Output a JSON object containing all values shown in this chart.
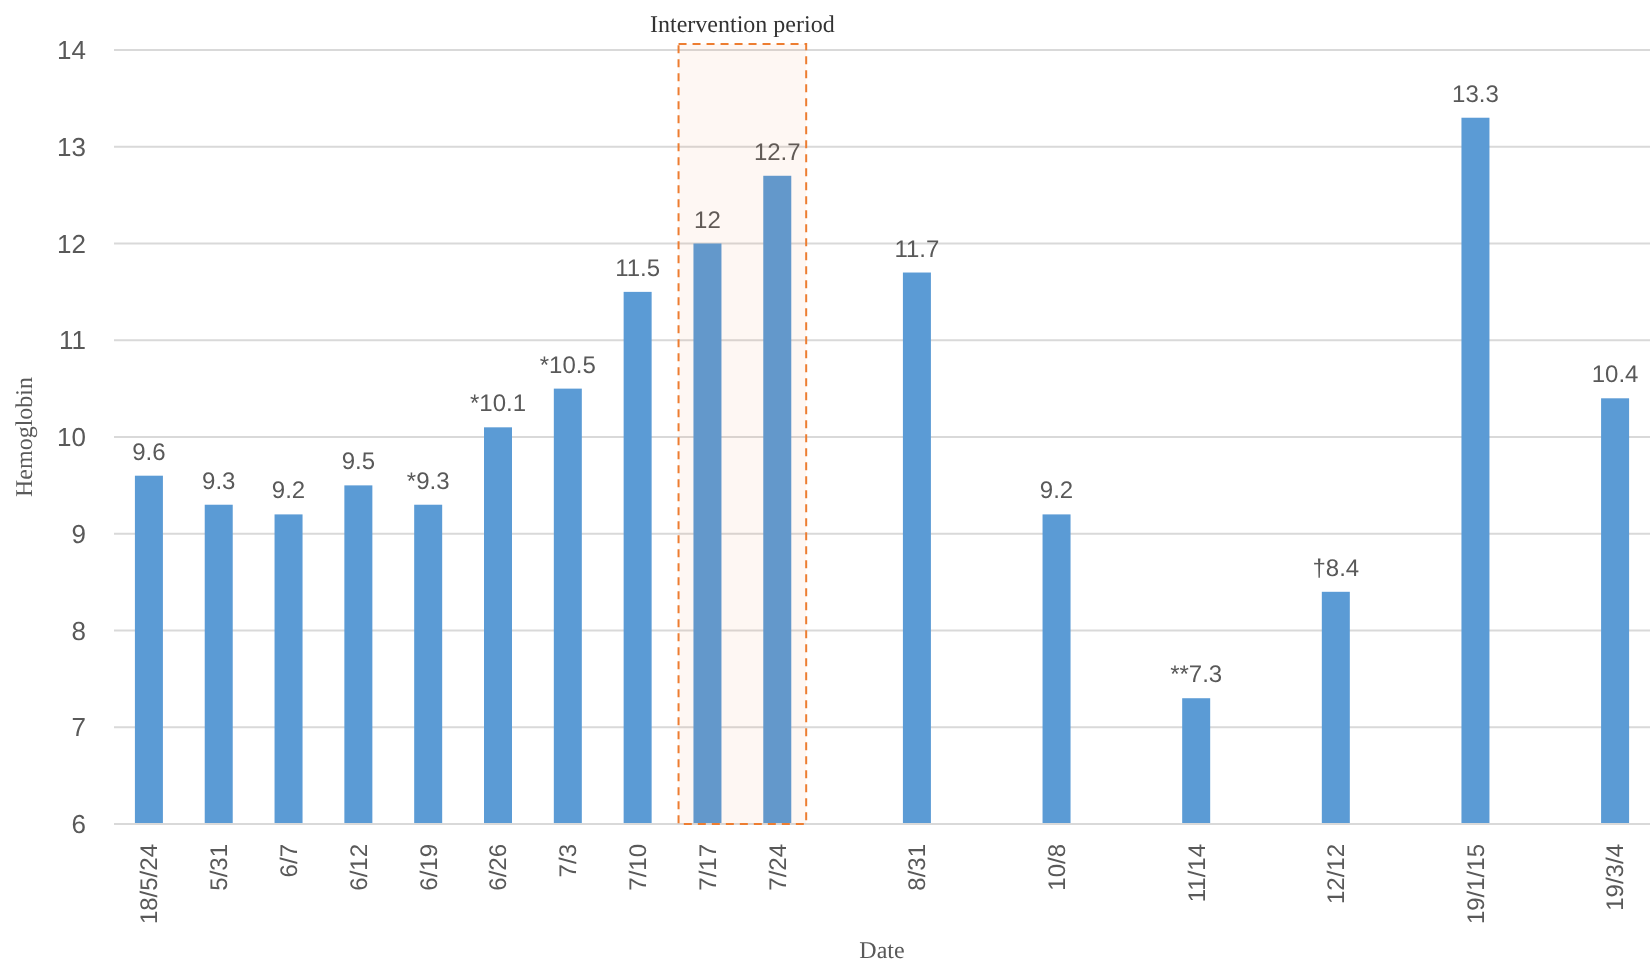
{
  "chart_data": {
    "type": "bar",
    "xlabel": "Date",
    "ylabel": "Hemoglobin",
    "categories": [
      "18/5/24",
      "5/31",
      "6/7",
      "6/12",
      "6/19",
      "6/26",
      "7/3",
      "7/10",
      "7/17",
      "7/24",
      null,
      "8/31",
      null,
      "10/8",
      null,
      "11/14",
      null,
      "12/12",
      null,
      "19/1/15",
      null,
      "19/3/4"
    ],
    "values": [
      9.6,
      9.3,
      9.2,
      9.5,
      9.3,
      10.1,
      10.5,
      11.5,
      12,
      12.7,
      null,
      11.7,
      null,
      9.2,
      null,
      7.3,
      null,
      8.4,
      null,
      13.3,
      null,
      10.4
    ],
    "value_labels": [
      "9.6",
      "9.3",
      "9.2",
      "9.5",
      "*9.3",
      "*10.1",
      "*10.5",
      "11.5",
      "12",
      "12.7",
      null,
      "11.7",
      null,
      "9.2",
      null,
      "**7.3",
      null,
      "†8.4",
      null,
      "13.3",
      null,
      "10.4"
    ],
    "color": "#5b9bd5",
    "ylim": [
      6,
      14
    ],
    "yticks": [
      6,
      7,
      8,
      9,
      10,
      11,
      12,
      13,
      14
    ],
    "grid": "y",
    "bands": [
      {
        "axis": "x",
        "from": "7/17",
        "to": "7/24",
        "label": "Intervention period",
        "color": "#ed7d31"
      }
    ]
  }
}
